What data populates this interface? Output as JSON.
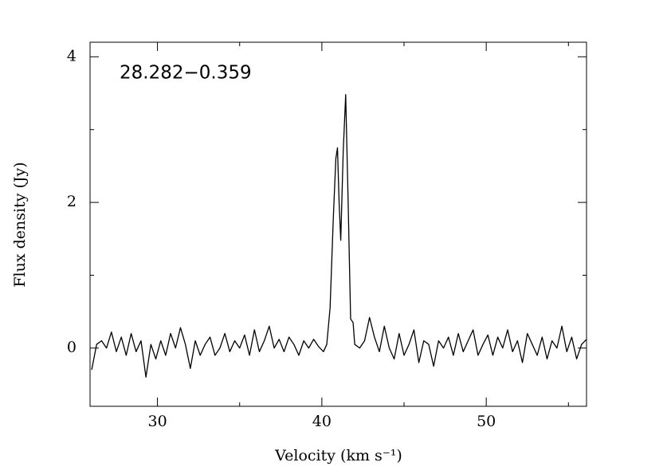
{
  "chart_data": {
    "type": "line",
    "annotation": "28.282−0.359",
    "xlabel": "Velocity (km s⁻¹)",
    "ylabel": "Flux density (Jy)",
    "color": "#000000",
    "xlim": [
      25.9,
      56.1
    ],
    "ylim": [
      -0.8,
      4.2
    ],
    "xticks": [
      30,
      40,
      50
    ],
    "yticks": [
      0,
      2,
      4
    ],
    "xminorticks": [
      35,
      45,
      55
    ],
    "yminorticks": [
      1,
      3
    ],
    "x": [
      26.0,
      26.3,
      26.6,
      26.9,
      27.2,
      27.5,
      27.8,
      28.1,
      28.4,
      28.7,
      29.0,
      29.3,
      29.6,
      29.9,
      30.2,
      30.5,
      30.8,
      31.1,
      31.4,
      31.7,
      32.0,
      32.3,
      32.6,
      32.9,
      33.2,
      33.5,
      33.8,
      34.1,
      34.4,
      34.7,
      35.0,
      35.3,
      35.6,
      35.9,
      36.2,
      36.5,
      36.8,
      37.1,
      37.4,
      37.7,
      38.0,
      38.3,
      38.6,
      38.9,
      39.2,
      39.5,
      39.8,
      40.1,
      40.3,
      40.5,
      40.7,
      40.85,
      40.95,
      41.05,
      41.15,
      41.3,
      41.45,
      41.6,
      41.75,
      41.9,
      42.0,
      42.3,
      42.6,
      42.9,
      43.2,
      43.5,
      43.8,
      44.1,
      44.4,
      44.7,
      45.0,
      45.3,
      45.6,
      45.9,
      46.2,
      46.5,
      46.8,
      47.1,
      47.4,
      47.7,
      48.0,
      48.3,
      48.6,
      48.9,
      49.2,
      49.5,
      49.8,
      50.1,
      50.4,
      50.7,
      51.0,
      51.3,
      51.6,
      51.9,
      52.2,
      52.5,
      52.8,
      53.1,
      53.4,
      53.7,
      54.0,
      54.3,
      54.6,
      54.9,
      55.2,
      55.5,
      55.8,
      56.1
    ],
    "values": [
      -0.3,
      0.05,
      0.1,
      0.0,
      0.22,
      -0.05,
      0.15,
      -0.1,
      0.2,
      -0.05,
      0.1,
      -0.4,
      0.05,
      -0.15,
      0.1,
      -0.1,
      0.2,
      0.0,
      0.28,
      0.05,
      -0.28,
      0.1,
      -0.1,
      0.05,
      0.15,
      -0.1,
      0.0,
      0.2,
      -0.05,
      0.1,
      0.0,
      0.18,
      -0.1,
      0.25,
      -0.05,
      0.1,
      0.3,
      0.0,
      0.12,
      -0.05,
      0.15,
      0.05,
      -0.1,
      0.1,
      0.0,
      0.12,
      0.02,
      -0.05,
      0.05,
      0.55,
      1.8,
      2.6,
      2.75,
      2.0,
      1.48,
      2.7,
      3.48,
      2.0,
      0.4,
      0.35,
      0.05,
      0.0,
      0.1,
      0.42,
      0.15,
      -0.05,
      0.3,
      0.0,
      -0.15,
      0.2,
      -0.1,
      0.05,
      0.25,
      -0.2,
      0.1,
      0.05,
      -0.25,
      0.1,
      0.0,
      0.15,
      -0.1,
      0.2,
      -0.05,
      0.1,
      0.25,
      -0.1,
      0.05,
      0.18,
      -0.1,
      0.15,
      0.0,
      0.25,
      -0.05,
      0.1,
      -0.2,
      0.2,
      0.05,
      -0.1,
      0.15,
      -0.15,
      0.1,
      0.0,
      0.3,
      -0.05,
      0.15,
      -0.15,
      0.05,
      0.12
    ]
  }
}
